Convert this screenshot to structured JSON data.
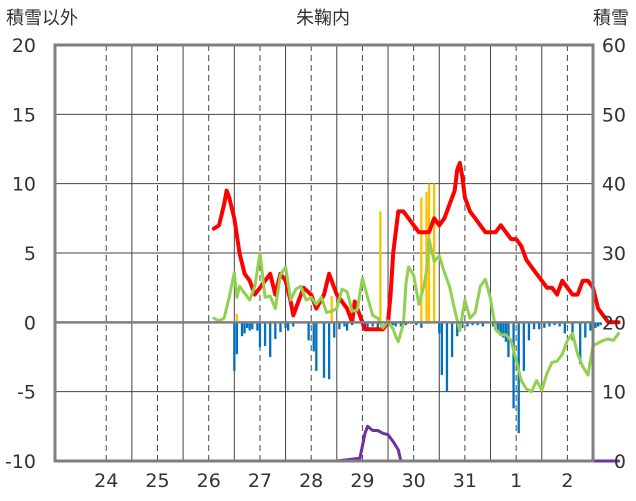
{
  "chart_data": {
    "type": "bar+line",
    "title": "朱鞠内",
    "left_axis_label": "積雪以外",
    "right_axis_label": "積雪",
    "left_ylim": [
      -10,
      20
    ],
    "left_ticks": [
      "20",
      "15",
      "10",
      "5",
      "0",
      "-5",
      "-10"
    ],
    "left_tick_values": [
      20,
      15,
      10,
      5,
      0,
      -5,
      -10
    ],
    "right_ylim": [
      0,
      60
    ],
    "right_ticks": [
      "60",
      "50",
      "40",
      "30",
      "20",
      "10",
      "0"
    ],
    "right_tick_values": [
      60,
      50,
      40,
      30,
      20,
      10,
      0
    ],
    "x_labels": [
      "24",
      "25",
      "26",
      "27",
      "28",
      "29",
      "30",
      "31",
      "1",
      "2"
    ],
    "x_label_pos": [
      0.5,
      1.5,
      2.5,
      3.5,
      4.5,
      5.5,
      6.5,
      7.5,
      8.5,
      9.5
    ],
    "xlim": [
      -0.5,
      10.0
    ],
    "grid": true,
    "colors": {
      "snow_depth": "#ff0000",
      "temperature": "#92d050",
      "precip_positive": "#ffc000",
      "precip_negative": "#0070c0",
      "wind": "#7030a0",
      "grid": "#444444",
      "frame": "#7f7f7f"
    },
    "series": [
      {
        "key": "snow_depth",
        "axis": "right",
        "kind": "line",
        "points": [
          [
            2.6,
            33.5
          ],
          [
            2.7,
            34
          ],
          [
            2.8,
            37
          ],
          [
            2.85,
            39
          ],
          [
            2.9,
            38
          ],
          [
            3.0,
            35
          ],
          [
            3.1,
            30
          ],
          [
            3.2,
            27
          ],
          [
            3.3,
            26
          ],
          [
            3.4,
            24
          ],
          [
            3.5,
            25
          ],
          [
            3.6,
            26
          ],
          [
            3.7,
            27
          ],
          [
            3.8,
            24
          ],
          [
            3.9,
            27
          ],
          [
            4.0,
            26
          ],
          [
            4.1,
            23
          ],
          [
            4.15,
            21
          ],
          [
            4.25,
            23
          ],
          [
            4.35,
            25
          ],
          [
            4.5,
            24
          ],
          [
            4.6,
            22
          ],
          [
            4.75,
            24
          ],
          [
            4.85,
            27
          ],
          [
            4.95,
            25
          ],
          [
            5.0,
            24
          ],
          [
            5.1,
            23
          ],
          [
            5.2,
            22
          ],
          [
            5.3,
            20
          ],
          [
            5.35,
            23
          ],
          [
            5.45,
            21
          ],
          [
            5.5,
            20
          ],
          [
            5.55,
            19
          ],
          [
            5.6,
            19
          ],
          [
            5.7,
            19
          ],
          [
            5.8,
            19
          ],
          [
            5.9,
            19
          ],
          [
            6.0,
            20
          ],
          [
            6.05,
            24
          ],
          [
            6.1,
            30
          ],
          [
            6.2,
            36
          ],
          [
            6.3,
            36
          ],
          [
            6.4,
            35
          ],
          [
            6.5,
            34
          ],
          [
            6.6,
            33
          ],
          [
            6.7,
            33
          ],
          [
            6.8,
            33
          ],
          [
            6.9,
            35
          ],
          [
            7.0,
            34
          ],
          [
            7.1,
            35
          ],
          [
            7.2,
            37
          ],
          [
            7.3,
            39
          ],
          [
            7.35,
            42
          ],
          [
            7.4,
            43
          ],
          [
            7.45,
            41
          ],
          [
            7.5,
            38
          ],
          [
            7.6,
            36
          ],
          [
            7.7,
            35
          ],
          [
            7.8,
            34
          ],
          [
            7.9,
            33
          ],
          [
            8.0,
            33
          ],
          [
            8.1,
            33
          ],
          [
            8.2,
            34
          ],
          [
            8.3,
            33
          ],
          [
            8.4,
            32
          ],
          [
            8.5,
            32
          ],
          [
            8.6,
            31
          ],
          [
            8.7,
            29
          ],
          [
            8.8,
            28
          ],
          [
            8.9,
            27
          ],
          [
            9.0,
            26
          ],
          [
            9.1,
            25
          ],
          [
            9.2,
            25
          ],
          [
            9.3,
            24
          ],
          [
            9.4,
            26
          ],
          [
            9.5,
            25
          ],
          [
            9.6,
            24
          ],
          [
            9.7,
            24
          ],
          [
            9.8,
            26
          ],
          [
            9.9,
            26
          ],
          [
            10.0,
            25
          ],
          [
            10.1,
            22
          ],
          [
            10.2,
            21
          ],
          [
            10.3,
            20
          ],
          [
            10.4,
            20
          ],
          [
            10.5,
            20
          ]
        ]
      },
      {
        "key": "temperature",
        "axis": "left",
        "kind": "line",
        "points": [
          [
            2.6,
            0.3
          ],
          [
            2.7,
            0.1
          ],
          [
            2.8,
            0.3
          ],
          [
            2.9,
            1.8
          ],
          [
            3.0,
            3.6
          ],
          [
            3.05,
            1.8
          ],
          [
            3.1,
            2.6
          ],
          [
            3.2,
            2.1
          ],
          [
            3.3,
            1.6
          ],
          [
            3.4,
            2.6
          ],
          [
            3.5,
            5
          ],
          [
            3.6,
            1.8
          ],
          [
            3.7,
            1.9
          ],
          [
            3.8,
            1
          ],
          [
            3.9,
            3.4
          ],
          [
            4.0,
            4
          ],
          [
            4.1,
            1.6
          ],
          [
            4.2,
            2.4
          ],
          [
            4.3,
            2.6
          ],
          [
            4.4,
            1.6
          ],
          [
            4.5,
            1.8
          ],
          [
            4.6,
            1.3
          ],
          [
            4.7,
            1.8
          ],
          [
            4.8,
            0.7
          ],
          [
            4.9,
            0.8
          ],
          [
            5.0,
            1
          ],
          [
            5.1,
            2.4
          ],
          [
            5.2,
            2.2
          ],
          [
            5.3,
            0.8
          ],
          [
            5.4,
            0.9
          ],
          [
            5.5,
            3.2
          ],
          [
            5.6,
            1.8
          ],
          [
            5.7,
            0.5
          ],
          [
            5.8,
            0.3
          ],
          [
            5.9,
            -0.4
          ],
          [
            6.0,
            0.1
          ],
          [
            6.1,
            -0.5
          ],
          [
            6.15,
            -1
          ],
          [
            6.2,
            -1.4
          ],
          [
            6.3,
            -0.1
          ],
          [
            6.35,
            2.8
          ],
          [
            6.4,
            4
          ],
          [
            6.5,
            3.4
          ],
          [
            6.6,
            1.3
          ],
          [
            6.7,
            2.6
          ],
          [
            6.75,
            3.7
          ],
          [
            6.8,
            6
          ],
          [
            6.9,
            4.4
          ],
          [
            7.0,
            4.8
          ],
          [
            7.1,
            3.6
          ],
          [
            7.2,
            2.6
          ],
          [
            7.3,
            0.9
          ],
          [
            7.4,
            -0.6
          ],
          [
            7.5,
            1.6
          ],
          [
            7.6,
            0.3
          ],
          [
            7.7,
            0.7
          ],
          [
            7.8,
            2.6
          ],
          [
            7.9,
            3.1
          ],
          [
            8.0,
            1.7
          ],
          [
            8.1,
            -0.5
          ],
          [
            8.2,
            -0.9
          ],
          [
            8.3,
            -0.9
          ],
          [
            8.4,
            -1.3
          ],
          [
            8.5,
            -2.7
          ],
          [
            8.6,
            -4.2
          ],
          [
            8.7,
            -4.8
          ],
          [
            8.8,
            -5
          ],
          [
            8.9,
            -4.2
          ],
          [
            9.0,
            -4.9
          ],
          [
            9.1,
            -3.7
          ],
          [
            9.2,
            -2.9
          ],
          [
            9.3,
            -2.8
          ],
          [
            9.4,
            -2.3
          ],
          [
            9.5,
            -1.3
          ],
          [
            9.6,
            -0.8
          ],
          [
            9.7,
            -2.3
          ],
          [
            9.8,
            -3.2
          ],
          [
            9.9,
            -3.8
          ],
          [
            10.0,
            -1.7
          ],
          [
            10.1,
            -1.5
          ],
          [
            10.2,
            -1.3
          ],
          [
            10.3,
            -1.2
          ],
          [
            10.4,
            -1.3
          ],
          [
            10.5,
            -0.8
          ]
        ]
      },
      {
        "key": "wind",
        "axis": "left",
        "kind": "line",
        "points": [
          [
            3.0,
            -10
          ],
          [
            4.0,
            -10
          ],
          [
            5.0,
            -10
          ],
          [
            5.45,
            -9.8
          ],
          [
            5.55,
            -8
          ],
          [
            5.6,
            -7.5
          ],
          [
            5.7,
            -7.8
          ],
          [
            5.8,
            -7.8
          ],
          [
            5.9,
            -8
          ],
          [
            6.0,
            -8.1
          ],
          [
            6.1,
            -8.6
          ],
          [
            6.2,
            -9.2
          ],
          [
            6.25,
            -10
          ],
          [
            7.0,
            -10
          ],
          [
            8.0,
            -10
          ],
          [
            9.0,
            -10
          ],
          [
            10.0,
            -10
          ],
          [
            10.5,
            -10
          ]
        ]
      }
    ],
    "bars_positive": {
      "color_key": "precip_positive",
      "x": [
        3.05,
        4.9,
        5.85,
        6.65,
        6.75,
        6.8,
        6.9
      ],
      "values": [
        0.6,
        1.9,
        8,
        9,
        9.4,
        10,
        10
      ]
    },
    "bars_negative": {
      "color_key": "precip_negative",
      "x": [
        3.0,
        3.05,
        3.15,
        3.2,
        3.25,
        3.3,
        3.35,
        3.45,
        3.5,
        3.6,
        3.7,
        3.8,
        3.9,
        4.0,
        4.05,
        4.15,
        4.45,
        4.55,
        4.6,
        4.75,
        4.85,
        4.95,
        5.05,
        5.15,
        5.2,
        5.3,
        5.5,
        5.55,
        5.6,
        5.7,
        5.8,
        5.95,
        6.05,
        6.1,
        6.15,
        6.25,
        6.35,
        6.45,
        6.55,
        6.65,
        7.0,
        7.05,
        7.15,
        7.25,
        7.35,
        7.45,
        7.55,
        7.65,
        7.75,
        7.85,
        8.05,
        8.1,
        8.15,
        8.2,
        8.25,
        8.3,
        8.35,
        8.45,
        8.55,
        8.65,
        8.75,
        8.85,
        8.95,
        9.05,
        9.15,
        9.25,
        9.35,
        9.45,
        9.6,
        9.75,
        9.85,
        9.95,
        10.05,
        10.1,
        10.15
      ],
      "values": [
        -3.5,
        -2.3,
        -1,
        -0.8,
        -0.4,
        -0.6,
        -0.5,
        -0.6,
        -1.8,
        -1.7,
        -2.5,
        -1.2,
        -0.7,
        -0.4,
        -0.6,
        -0.3,
        -1.3,
        -2.1,
        -3.5,
        -4,
        -4.1,
        -1.1,
        -0.5,
        -0.3,
        -0.6,
        -0.2,
        -0.3,
        -0.4,
        -0.5,
        -0.3,
        -0.6,
        -0.3,
        -0.3,
        -0.2,
        -0.3,
        -0.3,
        -0.2,
        -0.1,
        -0.2,
        -0.4,
        -0.8,
        -3.8,
        -5,
        -2.5,
        -1,
        -0.4,
        -0.3,
        -0.2,
        -0.2,
        -0.3,
        -0.3,
        -0.6,
        -0.6,
        -0.9,
        -1.1,
        -1.4,
        -2.5,
        -6.2,
        -8,
        -3.5,
        -1.3,
        -0.5,
        -0.5,
        -0.4,
        -0.3,
        -0.2,
        -0.3,
        -0.8,
        -1.3,
        -3,
        -1.1,
        -0.6,
        -0.4,
        -0.3,
        -0.2
      ]
    }
  }
}
